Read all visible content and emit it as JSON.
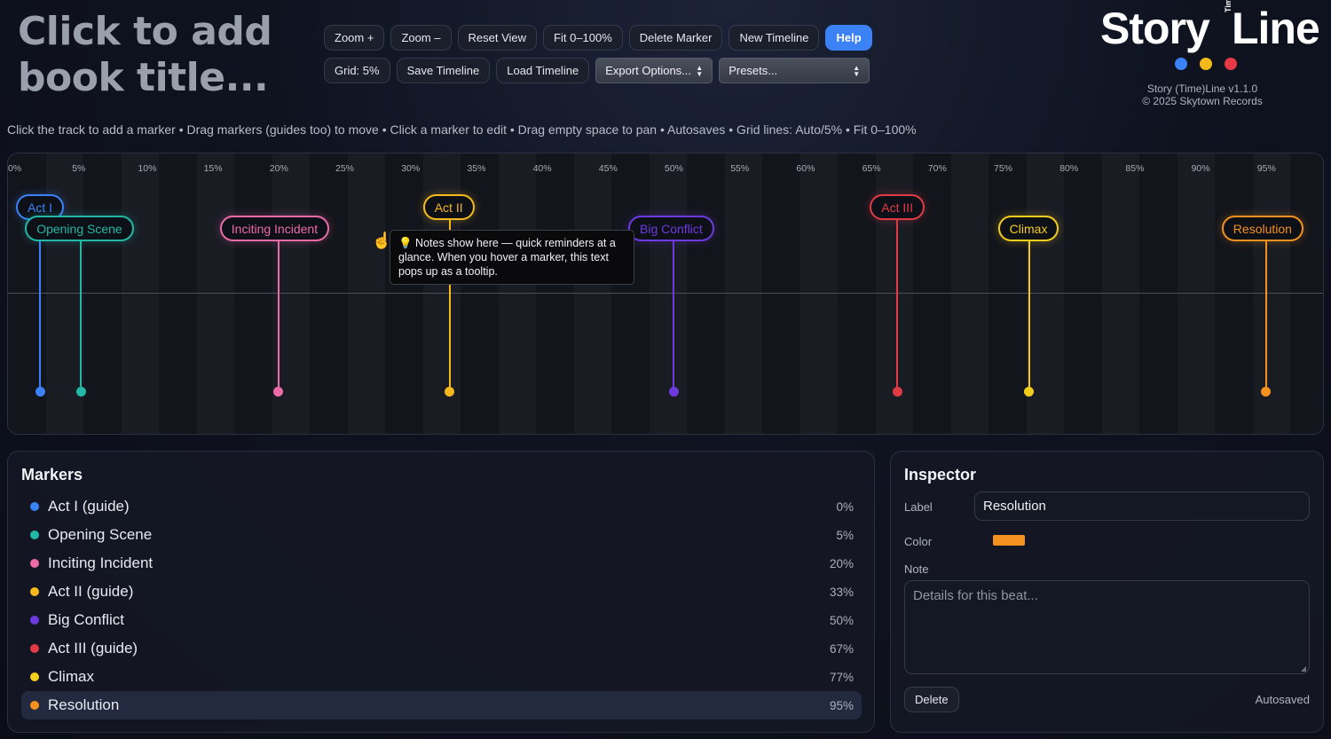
{
  "book_title": "Click to add book title...",
  "toolbar": {
    "row1": [
      "Zoom +",
      "Zoom –",
      "Reset View",
      "Fit 0–100%",
      "Delete Marker",
      "New Timeline"
    ],
    "help": "Help",
    "row2": [
      "Grid: 5%",
      "Save Timeline",
      "Load Timeline"
    ],
    "export_select": "Export Options...",
    "presets_select": "Presets..."
  },
  "brand": {
    "logo_story": "Story",
    "logo_time": "Time",
    "logo_line": "Line",
    "logo_dot_colors": [
      "#3b82f6",
      "#f5b91c",
      "#e63946"
    ],
    "version": "Story (Time)Line v1.1.0",
    "copyright": "© 2025 Skytown Records"
  },
  "instructions": "Click the track to add a marker • Drag markers (guides too) to move • Click a marker to edit • Drag empty space to pan • Autosaves • Grid lines: Auto/5% • Fit 0–100%",
  "timeline": {
    "ticks": [
      "0%",
      "5%",
      "10%",
      "15%",
      "20%",
      "25%",
      "30%",
      "35%",
      "40%",
      "45%",
      "50%",
      "55%",
      "60%",
      "65%",
      "70%",
      "75%",
      "80%",
      "85%",
      "90%",
      "95%"
    ],
    "markers": [
      {
        "label": "Act I",
        "position": 0,
        "color": "#3b82f6",
        "guide": true
      },
      {
        "label": "Opening Scene",
        "position": 5,
        "color": "#22b8a5",
        "guide": false
      },
      {
        "label": "Inciting Incident",
        "position": 20,
        "color": "#ec6aa8",
        "guide": false
      },
      {
        "label": "Act II",
        "position": 33,
        "color": "#f5b91c",
        "guide": true
      },
      {
        "label": "Big Conflict",
        "position": 50,
        "color": "#6d3ae0",
        "guide": false
      },
      {
        "label": "Act III",
        "position": 67,
        "color": "#e03a45",
        "guide": true
      },
      {
        "label": "Climax",
        "position": 77,
        "color": "#f3cc1c",
        "guide": false
      },
      {
        "label": "Resolution",
        "position": 95,
        "color": "#f4911f",
        "guide": false
      }
    ],
    "tooltip": "💡 Notes show here — quick reminders at a glance. When you hover a marker, this text pops up as a tooltip."
  },
  "markers_panel": {
    "title": "Markers",
    "items": [
      {
        "name": "Act I (guide)",
        "pct": "0%",
        "color": "#3b82f6"
      },
      {
        "name": "Opening Scene",
        "pct": "5%",
        "color": "#22b8a5"
      },
      {
        "name": "Inciting Incident",
        "pct": "20%",
        "color": "#ec6aa8"
      },
      {
        "name": "Act II (guide)",
        "pct": "33%",
        "color": "#f5b91c"
      },
      {
        "name": "Big Conflict",
        "pct": "50%",
        "color": "#6d3ae0"
      },
      {
        "name": "Act III (guide)",
        "pct": "67%",
        "color": "#e03a45"
      },
      {
        "name": "Climax",
        "pct": "77%",
        "color": "#f3cc1c"
      },
      {
        "name": "Resolution",
        "pct": "95%",
        "color": "#f4911f"
      }
    ],
    "selected_index": 7
  },
  "inspector": {
    "title": "Inspector",
    "label_caption": "Label",
    "label_value": "Resolution",
    "color_caption": "Color",
    "color_value": "#f4911f",
    "note_caption": "Note",
    "note_placeholder": "Details for this beat...",
    "delete_label": "Delete",
    "status": "Autosaved"
  }
}
